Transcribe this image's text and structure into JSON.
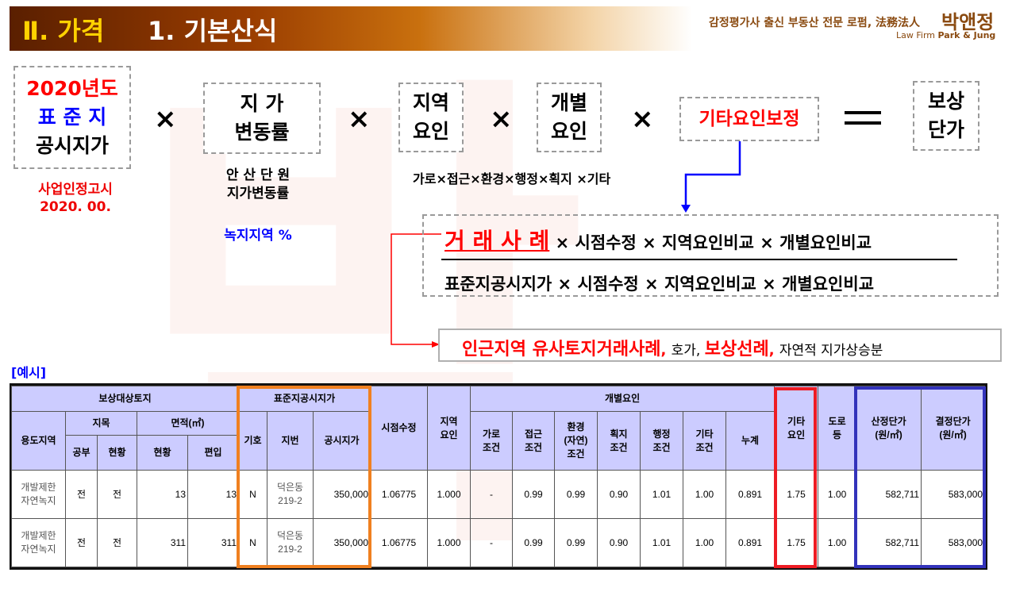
{
  "header": {
    "section": "Ⅱ. 가격",
    "title": "1. 기본산식",
    "firm_slogan": "감정평가사 출신 부동산 전문 로펌, 法務法人",
    "firm_name": "박앤정",
    "firm_en_prefix": "Law Firm",
    "firm_en_name": "Park & Jung",
    "watermark": "박"
  },
  "formula": {
    "box1": {
      "line1": "2020년도",
      "line2": "표 준 지",
      "line3": "공시지가",
      "note1": "사업인정고시",
      "note2": "2020. 00.",
      "colors": {
        "line1": "#ff0000",
        "line2": "#0000ff"
      }
    },
    "times": "×",
    "equals": "=",
    "box2": {
      "line1": "지  가",
      "line2": "변동률",
      "note1": "안 산 단 원",
      "note2": "지가변동률",
      "note3": "녹지지역 %"
    },
    "box3": {
      "line1": "지역",
      "line2": "요인",
      "note": "가로×접근×환경×행정×획지 ×기타"
    },
    "box4": {
      "line1": "개별",
      "line2": "요인"
    },
    "box5": {
      "label": "기타요인보정"
    },
    "box6": {
      "line1": "보상",
      "line2": "단가"
    },
    "numerator": {
      "highlight": "거 래 사 례",
      "rest": " × 시점수정 × 지역요인비교 × 개별요인비교"
    },
    "denominator": "표준지공시지가 × 시점수정 × 지역요인비교 × 개별요인비교",
    "similar": {
      "part1": "인근지역 유사토지거래사례",
      "sep1": ", ",
      "part2": "호가, ",
      "part3": "보상선례",
      "sep3": ", ",
      "part4": "자연적 지가상승분"
    }
  },
  "example_label": "[예시]",
  "table": {
    "group_headers": {
      "target": "보상대상토지",
      "standard": "표준지공시지가",
      "time": "시점수정",
      "region": "지역\n요인",
      "individual": "개별요인",
      "other": "기타\n요인",
      "road": "도로\n등",
      "calc": "산정단가\n(원/㎡)",
      "final": "결정단가\n(원/㎡)"
    },
    "sub_headers": {
      "zone": "용도지역",
      "jimok": "지목",
      "area": "면적(㎡)",
      "symbol": "기호",
      "lot": "지번",
      "price": "공시지가",
      "street": "가로\n조건",
      "access": "접근\n조건",
      "env": "환경\n(자연)\n조건",
      "parcel": "획지\n조건",
      "admin": "행정\n조건",
      "etc": "기타\n조건",
      "cumul": "누계"
    },
    "sub2_headers": {
      "official": "공부",
      "actual": "현황",
      "area_actual": "현황",
      "area_incl": "편입"
    },
    "rows": [
      {
        "zone": "개발제한\n자연녹지",
        "official": "전",
        "actual": "전",
        "area_actual": "13",
        "area_incl": "13",
        "symbol": "N",
        "lot": "덕은동\n219-2",
        "price": "350,000",
        "time": "1.06775",
        "region": "1.000",
        "street": "-",
        "access": "0.99",
        "env": "0.99",
        "parcel": "0.90",
        "admin": "1.01",
        "etc": "1.00",
        "cumul": "0.891",
        "other": "1.75",
        "road": "1.00",
        "calc": "582,711",
        "final": "583,000"
      },
      {
        "zone": "개발제한\n자연녹지",
        "official": "전",
        "actual": "전",
        "area_actual": "311",
        "area_incl": "311",
        "symbol": "N",
        "lot": "덕은동\n219-2",
        "price": "350,000",
        "time": "1.06775",
        "region": "1.000",
        "street": "-",
        "access": "0.99",
        "env": "0.99",
        "parcel": "0.90",
        "admin": "1.01",
        "etc": "1.00",
        "cumul": "0.891",
        "other": "1.75",
        "road": "1.00",
        "calc": "582,711",
        "final": "583,000"
      }
    ]
  },
  "colors": {
    "standard_box": "#f08020",
    "other_box": "#ee1c24",
    "price_box": "#3333bb",
    "header_bg": "#ccccff",
    "accent_red": "#ff0000",
    "accent_blue": "#0000ff"
  }
}
